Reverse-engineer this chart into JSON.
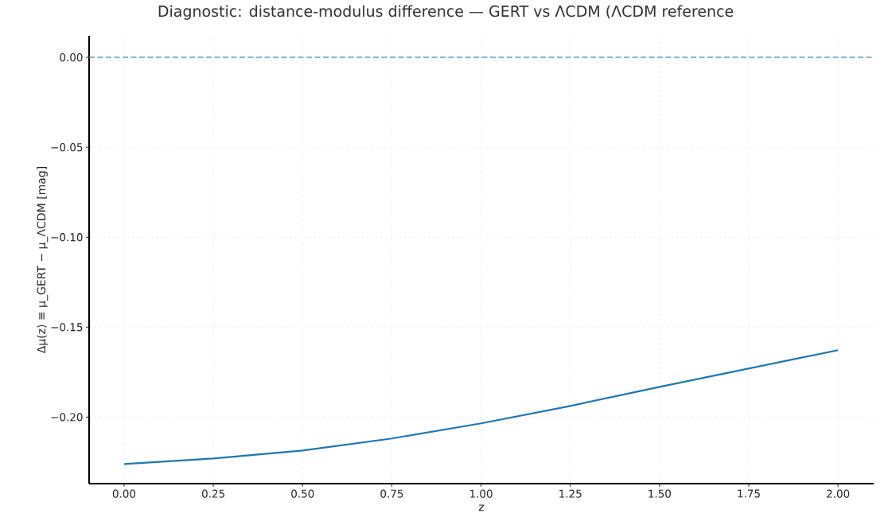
{
  "chart_data": {
    "type": "line",
    "title": "Diagnostic: distance-modulus difference — GERT vs ΛCDM (ΛCDM reference",
    "xlabel": "z",
    "ylabel": "Δμ(z) ≡ μ_GERT − μ_ΛCDM [mag]",
    "x": [
      0,
      0.25,
      0.5,
      0.75,
      1.0,
      1.25,
      1.5,
      1.75,
      2.0
    ],
    "series": [
      {
        "color": "#1f77b4",
        "values": [
          -0.2261,
          -0.223,
          -0.2186,
          -0.2119,
          -0.2035,
          -0.1938,
          -0.1832,
          -0.173,
          -0.1628
        ]
      }
    ],
    "xlim": [
      -0.098,
      2.1
    ],
    "ylim": [
      -0.237,
      0.012
    ],
    "xticks": [
      {
        "value": 0,
        "label": "0.00"
      },
      {
        "value": 0.25,
        "label": "0.25"
      },
      {
        "value": 0.5,
        "label": "0.50"
      },
      {
        "value": 0.75,
        "label": "0.75"
      },
      {
        "value": 1.0,
        "label": "1.00"
      },
      {
        "value": 1.25,
        "label": "1.25"
      },
      {
        "value": 1.5,
        "label": "1.50"
      },
      {
        "value": 1.75,
        "label": "1.75"
      },
      {
        "value": 2.0,
        "label": "2.00"
      }
    ],
    "yticks": [
      {
        "value": 0,
        "label": "0.00"
      },
      {
        "value": -0.05,
        "label": "−0.05"
      },
      {
        "value": -0.1,
        "label": "−0.10"
      },
      {
        "value": -0.15,
        "label": "−0.15"
      },
      {
        "value": -0.2,
        "label": "−0.20"
      }
    ],
    "ref_lines": [
      {
        "axis": "y",
        "value": 0,
        "color": "#5fa2d6",
        "line_style": "dashed"
      }
    ],
    "grid": true,
    "marker": "none",
    "line_style": "solid"
  }
}
